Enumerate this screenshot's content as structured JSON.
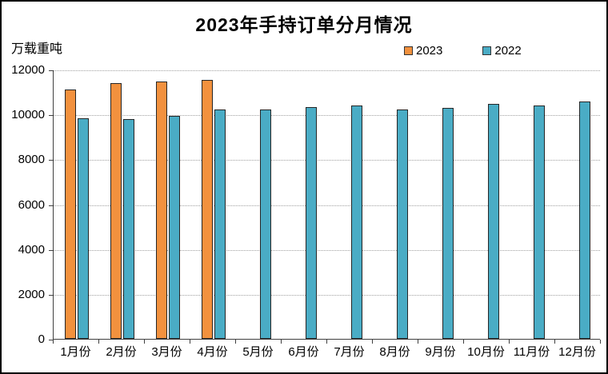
{
  "chart_data": {
    "type": "bar",
    "title": "2023年手持订单分月情况",
    "unit_label": "万载重吨",
    "categories": [
      "1月份",
      "2月份",
      "3月份",
      "4月份",
      "5月份",
      "6月份",
      "7月份",
      "8月份",
      "9月份",
      "10月份",
      "11月份",
      "12月份"
    ],
    "series": [
      {
        "name": "2023",
        "color": "#F2913E",
        "values": [
          11110,
          11380,
          11470,
          11520,
          null,
          null,
          null,
          null,
          null,
          null,
          null,
          null
        ]
      },
      {
        "name": "2022",
        "color": "#4AACC5",
        "values": [
          9840,
          9800,
          9930,
          10230,
          10220,
          10330,
          10390,
          10230,
          10290,
          10480,
          10400,
          10570
        ]
      }
    ],
    "ylim": [
      0,
      12000
    ],
    "ytick_step": 2000,
    "grid": "horizontal-dotted",
    "legend_position": "top-right",
    "bar_border_color": "#262626"
  }
}
